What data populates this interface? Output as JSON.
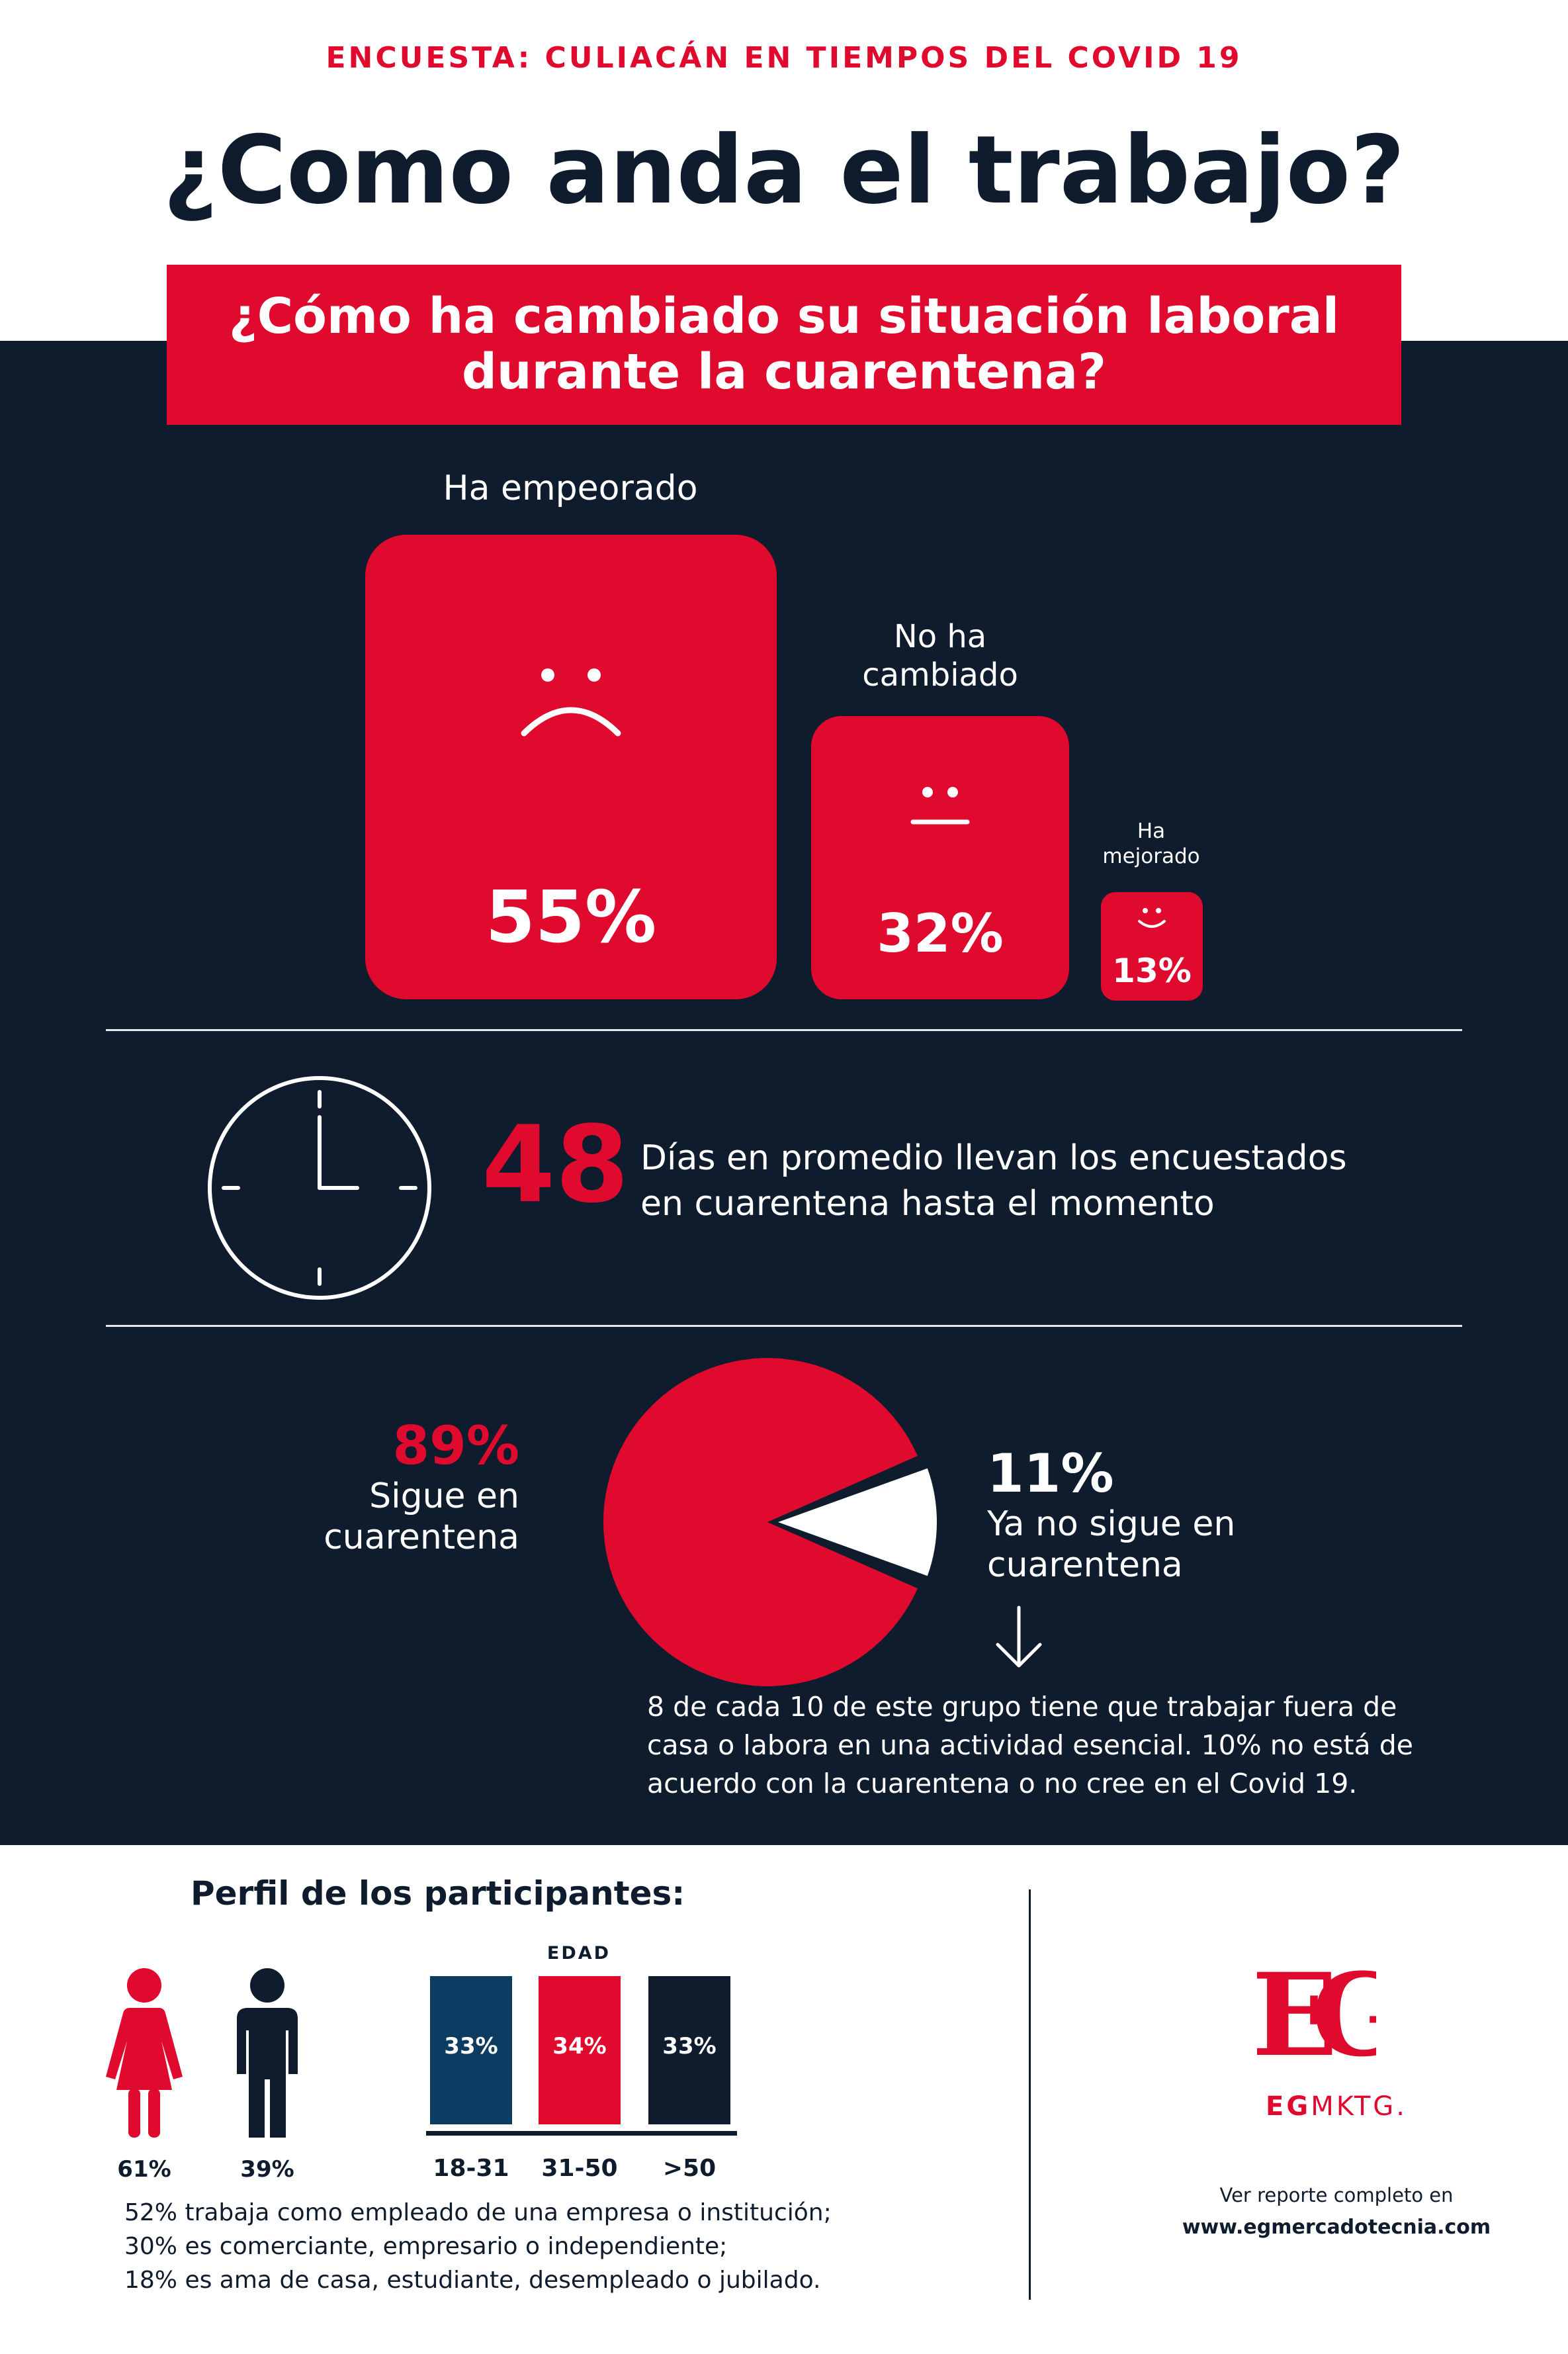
{
  "header": {
    "kicker": "ENCUESTA: CULIACÁN EN TIEMPOS DEL COVID 19",
    "title": "¿Como anda el trabajo?"
  },
  "question": {
    "line1": "¿Cómo ha cambiado su situación laboral",
    "line2": "durante la cuarentena?"
  },
  "work_change": [
    {
      "label_lines": [
        "Ha empeorado"
      ],
      "value": "55%",
      "face": "sad-face-icon"
    },
    {
      "label_lines": [
        "No ha",
        "cambiado"
      ],
      "value": "32%",
      "face": "neutral-face-icon"
    },
    {
      "label_lines": [
        "Ha",
        "mejorado"
      ],
      "value": "13%",
      "face": "happy-face-icon"
    }
  ],
  "quarantine_days": {
    "number": "48",
    "text_line1": "Días en promedio llevan los encuestados",
    "text_line2": "en cuarentena hasta el momento",
    "icon": "clock-icon"
  },
  "quarantine_status": {
    "still": {
      "value": "89%",
      "label_line1": "Sigue en",
      "label_line2": "cuarentena",
      "fraction": 0.89
    },
    "not": {
      "value": "11%",
      "label_line1": "Ya no sigue en",
      "label_line2": "cuarentena",
      "fraction": 0.11
    },
    "note_lines": [
      "8 de cada 10 de este grupo tiene que trabajar fuera de",
      "casa o labora en una actividad esencial. 10% no está de",
      "acuerdo con la cuarentena o no cree en el Covid 19."
    ]
  },
  "profile": {
    "title": "Perfil de los participantes:",
    "gender": [
      {
        "icon": "woman-icon",
        "value": "61%"
      },
      {
        "icon": "man-icon",
        "value": "39%"
      }
    ],
    "age_title": "EDAD",
    "age": [
      {
        "range": "18-31",
        "value": "33%",
        "color": "#0d3c63"
      },
      {
        "range": "31-50",
        "value": "34%",
        "color": "#e0092e"
      },
      {
        "range": ">50",
        "value": "33%",
        "color": "#0f1c2d"
      }
    ],
    "occupation_lines": [
      "52% trabaja como empleado de una empresa o institución;",
      "30% es comerciante, empresario o independiente;",
      "18% es ama de casa, estudiante, desempleado o jubilado."
    ]
  },
  "brand": {
    "logo_text": "EG",
    "name_bold": "EG",
    "name_light": "MKTG.",
    "report_note": "Ver reporte completo en",
    "report_url": "www.egmercadotecnia.com"
  },
  "colors": {
    "red": "#e0092e",
    "navy": "#0f1c2d",
    "blue": "#0d3c63"
  }
}
